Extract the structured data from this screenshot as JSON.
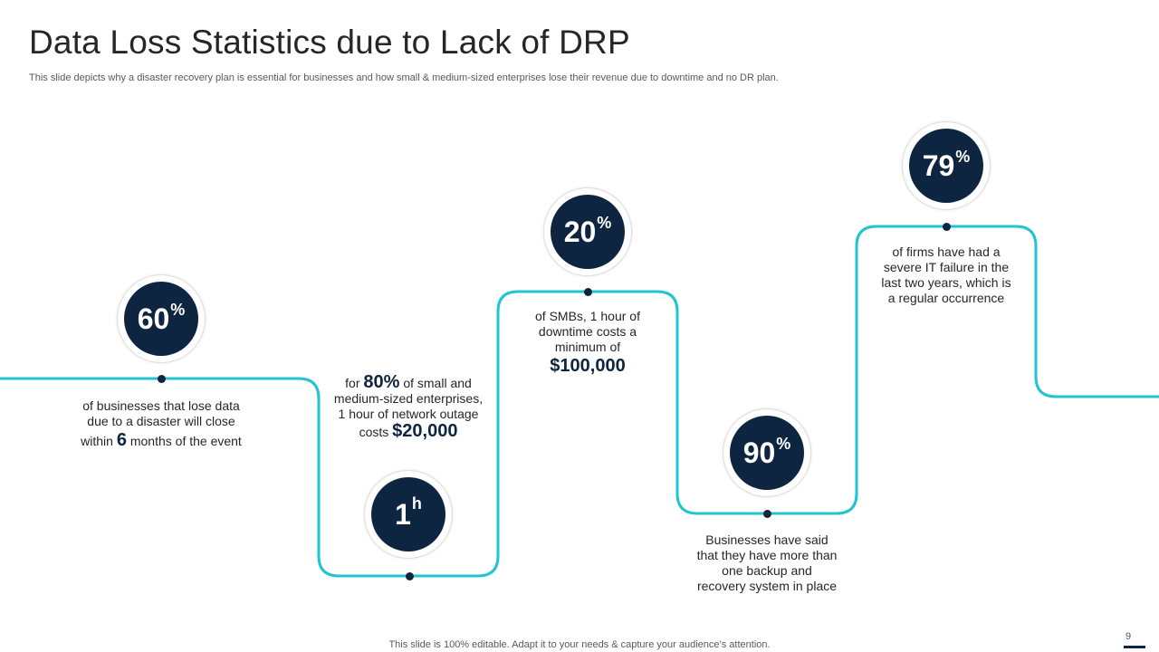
{
  "header": {
    "title": "Data Loss Statistics due to Lack of DRP",
    "subtitle": "This slide depicts why a disaster recovery plan is essential for businesses and how small & medium-sized enterprises lose their revenue due to downtime and no DR plan."
  },
  "colors": {
    "line": "#22c4cf",
    "circle": "#0d2540"
  },
  "stats": [
    {
      "value": "60",
      "unit": "%",
      "lines": [
        "of businesses that lose data",
        "due to a disaster will close"
      ],
      "pre": "within",
      "highlight": "6",
      "post": "months of the event"
    },
    {
      "value": "1",
      "unit": "h",
      "pre": "for",
      "highlight": "80%",
      "post": "of small and",
      "lines": [
        "medium-sized enterprises,",
        "1 hour of network outage"
      ],
      "cost_pre": "costs",
      "cost": "$20,000"
    },
    {
      "value": "20",
      "unit": "%",
      "lines": [
        "of SMBs, 1 hour of",
        "downtime costs a",
        "minimum  of"
      ],
      "cost": "$100,000"
    },
    {
      "value": "90",
      "unit": "%",
      "lines": [
        "Businesses have said",
        "that they have more than",
        "one backup and",
        "recovery system in place"
      ]
    },
    {
      "value": "79",
      "unit": "%",
      "lines": [
        "of firms have had a",
        "severe IT failure in the",
        "last two years, which is",
        "a regular occurrence"
      ]
    }
  ],
  "footer": {
    "note": "This slide is 100% editable. Adapt it to your needs & capture your audience’s attention.",
    "page": "9"
  }
}
